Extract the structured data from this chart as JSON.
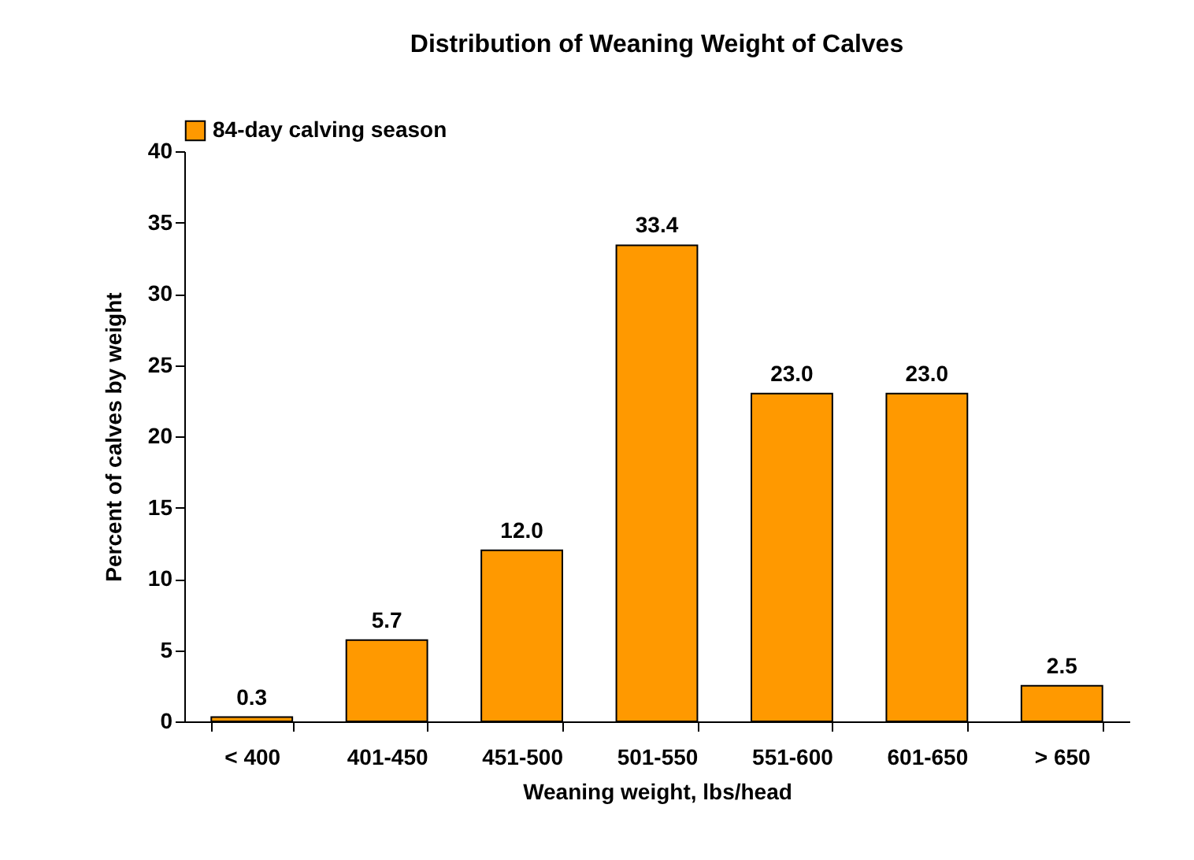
{
  "chart_data": {
    "type": "bar",
    "title": "Distribution of Weaning Weight of Calves",
    "xlabel": "Weaning weight, lbs/head",
    "ylabel": "Percent of calves by  weight",
    "categories": [
      "< 400",
      "401-450",
      "451-500",
      "501-550",
      "551-600",
      "601-650",
      "> 650"
    ],
    "series": [
      {
        "name": "84-day calving season",
        "color": "#ff9900",
        "values": [
          0.3,
          5.7,
          12.0,
          33.4,
          23.0,
          23.0,
          2.5
        ],
        "value_labels": [
          "0.3",
          "5.7",
          "12.0",
          "33.4",
          "23.0",
          "23.0",
          "2.5"
        ]
      }
    ],
    "ylim": [
      0,
      40
    ],
    "yticks": [
      0,
      5,
      10,
      15,
      20,
      25,
      30,
      35,
      40
    ],
    "grid": false,
    "legend": "top"
  }
}
